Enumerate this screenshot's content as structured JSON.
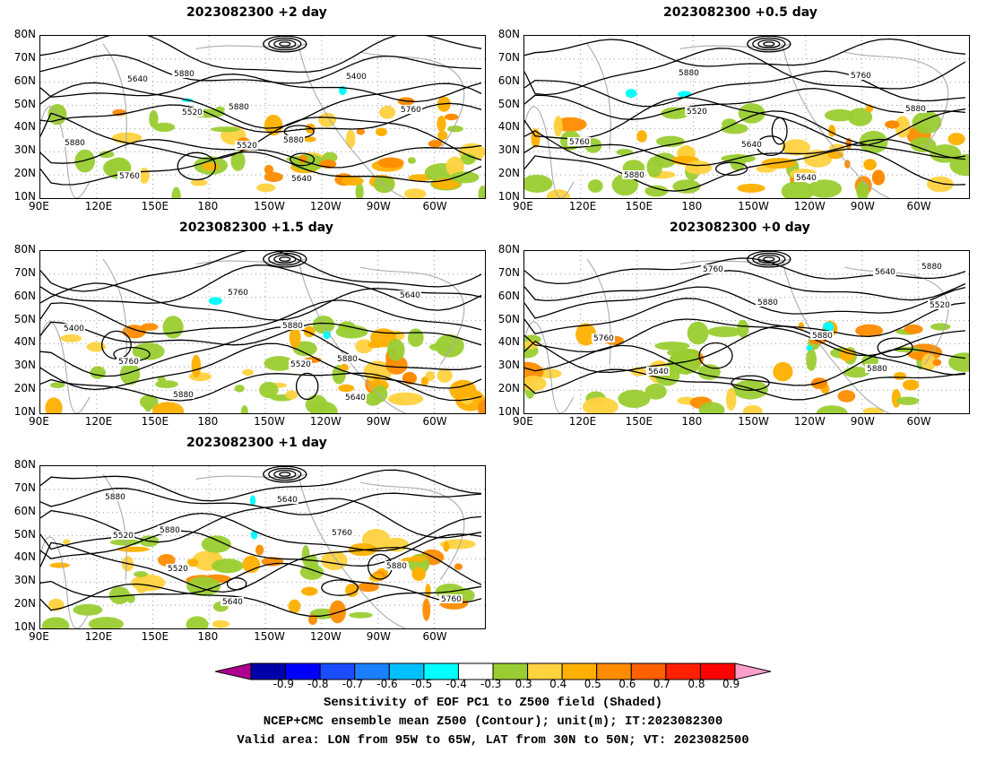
{
  "panels": [
    {
      "title": "2023082300 +2 day",
      "seed": 11,
      "labels": [
        "5640",
        "5520",
        "5520",
        "5640",
        "5400",
        "5760",
        "5880",
        "5760",
        "5880",
        "5880",
        "5880"
      ]
    },
    {
      "title": "2023082300 +0.5 day",
      "seed": 23,
      "labels": [
        "5520",
        "5640",
        "5640",
        "5760",
        "5880",
        "5760",
        "5880",
        "5880"
      ]
    },
    {
      "title": "2023082300 +1.5 day",
      "seed": 37,
      "labels": [
        "5520",
        "5640",
        "5640",
        "5400",
        "5760",
        "5880",
        "5760",
        "5880",
        "5880"
      ]
    },
    {
      "title": "2023082300 +0 day",
      "seed": 53,
      "labels": [
        "5640",
        "5520",
        "5760",
        "5640",
        "5760",
        "5880",
        "5880",
        "5880",
        "5880"
      ]
    },
    {
      "title": "2023082300 +1 day",
      "seed": 71,
      "labels": [
        "5520",
        "5520",
        "5640",
        "5640",
        "5760",
        "5880",
        "5760",
        "5880",
        "5880"
      ]
    }
  ],
  "y_ticks": [
    "80N",
    "70N",
    "60N",
    "50N",
    "40N",
    "30N",
    "20N",
    "10N"
  ],
  "x_ticks": [
    "90E",
    "120E",
    "150E",
    "180",
    "150W",
    "120W",
    "90W",
    "60W"
  ],
  "colorbar": {
    "ticks": [
      "-0.9",
      "-0.8",
      "-0.7",
      "-0.6",
      "-0.5",
      "-0.4",
      "-0.3",
      "0.3",
      "0.4",
      "0.5",
      "0.6",
      "0.7",
      "0.8",
      "0.9"
    ],
    "colors": [
      "#b0008e",
      "#0000a8",
      "#0000ff",
      "#1a4dff",
      "#1a80ff",
      "#00bfff",
      "#00ffff",
      "#ffffff",
      "#9acd32",
      "#ffd23f",
      "#ffb000",
      "#ff8c00",
      "#ff6000",
      "#ff2000",
      "#ff0000",
      "#ff9ec8"
    ]
  },
  "footer": {
    "line1": "Sensitivity of EOF PC1 to Z500 field (Shaded)",
    "line2": "NCEP+CMC ensemble mean Z500 (Contour); unit(m); IT:2023082300",
    "line3": "Valid area: LON from 95W to 65W, LAT from 30N to 50N; VT: 2023082500"
  }
}
